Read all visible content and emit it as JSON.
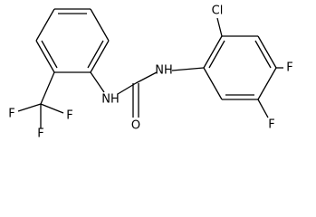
{
  "atoms": {
    "cl": "Cl",
    "f_ring_1": "F",
    "f_ring_2": "F",
    "nh_right": "NH",
    "nh_left": "NH",
    "o": "O",
    "f_cf3_1": "F",
    "f_cf3_2": "F",
    "f_cf3_3": "F"
  }
}
